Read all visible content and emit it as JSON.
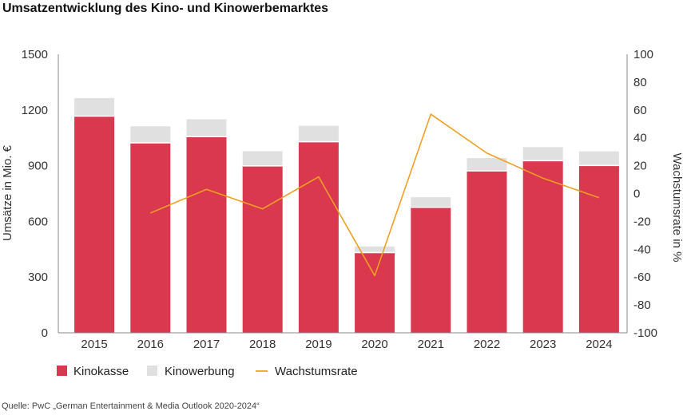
{
  "title": "Umsatzentwicklung des Kino- und Kinowerbemarktes",
  "source": "Quelle: PwC „German Entertainment & Media Outlook 2020-2024“",
  "colors": {
    "kinokasse": "#d9384f",
    "kinowerbung": "#e0e0e0",
    "wachstumsrate": "#f0a020"
  },
  "chart_data": {
    "type": "bar",
    "stacked": true,
    "categories": [
      "2015",
      "2016",
      "2017",
      "2018",
      "2019",
      "2020",
      "2021",
      "2022",
      "2023",
      "2024"
    ],
    "series": [
      {
        "name": "Kinokasse",
        "values": [
          1167,
          1023,
          1056,
          899,
          1029,
          432,
          676,
          872,
          927,
          901
        ]
      },
      {
        "name": "Kinowerbung",
        "values": [
          97,
          89,
          94,
          79,
          86,
          33,
          54,
          69,
          73,
          76
        ]
      }
    ],
    "line_series": {
      "name": "Wachstumsrate",
      "x": [
        "2016",
        "2017",
        "2018",
        "2019",
        "2020",
        "2021",
        "2022",
        "2023",
        "2024"
      ],
      "values": [
        -14,
        3,
        -11,
        12,
        -59,
        57,
        29,
        11,
        -3
      ]
    },
    "ylabel": "Umsätze in Mio. €",
    "y2label": "Wachstumsrate in %",
    "yticks": [
      "0",
      "300",
      "600",
      "900",
      "1200",
      "1500"
    ],
    "ylim": [
      0,
      1500
    ],
    "y2ticks": [
      "-100",
      "-80",
      "-60",
      "-40",
      "-20",
      "0",
      "20",
      "40",
      "60",
      "80",
      "100"
    ],
    "y2lim": [
      -100,
      100
    ],
    "grid": false,
    "legend_position": "bottom-left"
  }
}
